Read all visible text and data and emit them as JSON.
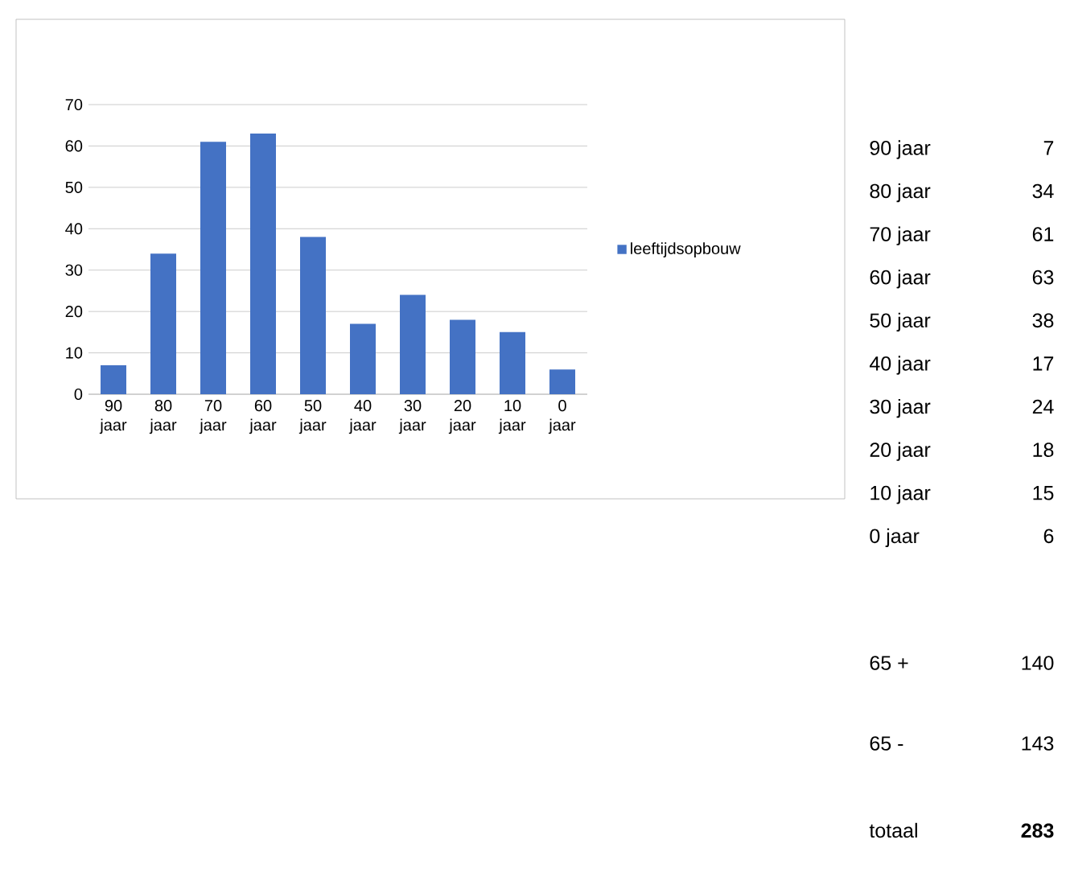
{
  "chart_data": {
    "type": "bar",
    "categories": [
      "90 jaar",
      "80 jaar",
      "70 jaar",
      "60 jaar",
      "50 jaar",
      "40 jaar",
      "30 jaar",
      "20 jaar",
      "10 jaar",
      "0 jaar"
    ],
    "series": [
      {
        "name": "leeftijdsopbouw",
        "color": "#4472c4",
        "values": [
          7,
          34,
          61,
          63,
          38,
          17,
          24,
          18,
          15,
          6
        ]
      }
    ],
    "ylim": [
      0,
      70
    ],
    "yticks": [
      0,
      10,
      20,
      30,
      40,
      50,
      60,
      70
    ],
    "grid": "y",
    "legend": "right",
    "annotations": [
      "90 jaar",
      "7",
      "80 jaar",
      "34",
      "70 jaar",
      "61",
      "60 jaar",
      "63",
      "50 jaar",
      "38",
      "40 jaar",
      "17",
      "30 jaar",
      "24",
      "20 jaar",
      "18",
      "10 jaar",
      "15",
      "0 jaar",
      "6",
      "65 +",
      "140",
      "65 -",
      "143",
      "totaal",
      "**283**"
    ]
  }
}
